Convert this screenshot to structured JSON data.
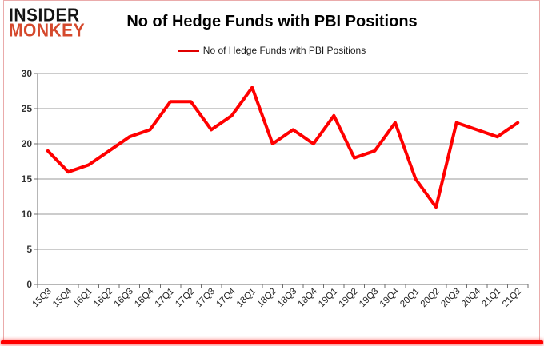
{
  "logo": {
    "line1": "INSIDER",
    "line2": "MONKEY"
  },
  "title": "No of Hedge Funds with PBI Positions",
  "legend": {
    "label": "No of Hedge Funds with PBI Positions",
    "swatch_color": "#e00000"
  },
  "colors": {
    "series_line": "#ff0000",
    "gridline": "#9a9a9a",
    "axis": "#6e6e6e",
    "tick_label": "#333333",
    "frame_border": "#eaabab",
    "bottom_bar": "#ff0000",
    "logo_black": "#141414",
    "logo_red": "#d5492d"
  },
  "chart_data": {
    "type": "line",
    "title": "No of Hedge Funds with PBI Positions",
    "categories": [
      "15Q3",
      "15Q4",
      "16Q1",
      "16Q2",
      "16Q3",
      "16Q4",
      "17Q1",
      "17Q2",
      "17Q3",
      "17Q4",
      "18Q1",
      "18Q2",
      "18Q3",
      "18Q4",
      "19Q1",
      "19Q2",
      "19Q3",
      "19Q4",
      "20Q1",
      "20Q2",
      "20Q3",
      "20Q4",
      "21Q1",
      "21Q2"
    ],
    "series": [
      {
        "name": "No of Hedge Funds with PBI Positions",
        "color": "#ff0000",
        "values": [
          19,
          16,
          17,
          19,
          21,
          22,
          26,
          26,
          22,
          24,
          28,
          20,
          22,
          20,
          24,
          18,
          19,
          23,
          15,
          11,
          23,
          22,
          21,
          23
        ]
      }
    ],
    "xlabel": "",
    "ylabel": "",
    "ylim": [
      0,
      30
    ],
    "yticks": [
      0,
      5,
      10,
      15,
      20,
      25,
      30
    ],
    "grid": true,
    "legend_position": "top-center",
    "x_tick_label_rotation": -45
  }
}
